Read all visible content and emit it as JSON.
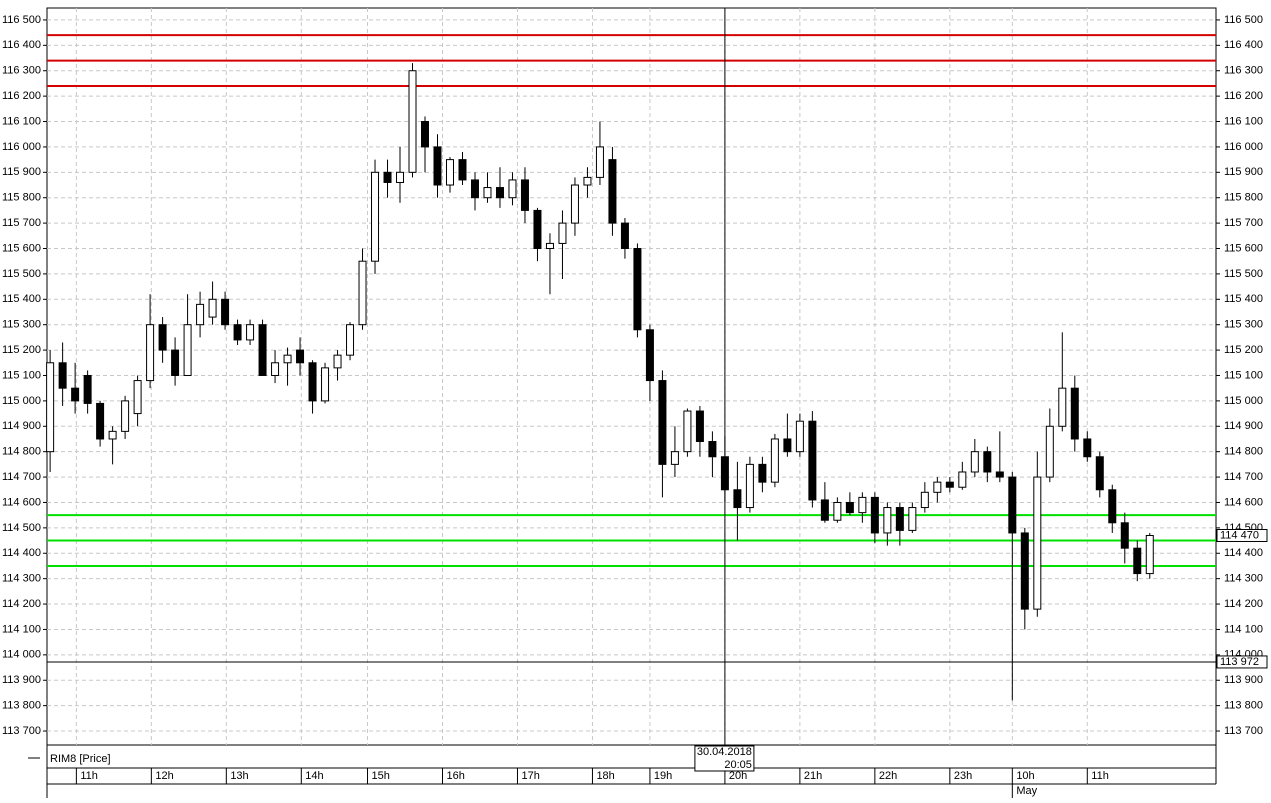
{
  "chart_data": {
    "type": "candlestick",
    "legend": "RIM8 [Price]",
    "ylim": [
      113645,
      116547
    ],
    "xlim": [
      -0.25,
      93.3
    ],
    "grid": true,
    "yticks": [
      {
        "value": 113700,
        "label": "113 700"
      },
      {
        "value": 113800,
        "label": "113 800"
      },
      {
        "value": 113900,
        "label": "113 900"
      },
      {
        "value": 114000,
        "label": "114 000"
      },
      {
        "value": 114100,
        "label": "114 100"
      },
      {
        "value": 114200,
        "label": "114 200"
      },
      {
        "value": 114300,
        "label": "114 300"
      },
      {
        "value": 114400,
        "label": "114 400"
      },
      {
        "value": 114500,
        "label": "114 500"
      },
      {
        "value": 114600,
        "label": "114 600"
      },
      {
        "value": 114700,
        "label": "114 700"
      },
      {
        "value": 114800,
        "label": "114 800"
      },
      {
        "value": 114900,
        "label": "114 900"
      },
      {
        "value": 115000,
        "label": "115 000"
      },
      {
        "value": 115100,
        "label": "115 100"
      },
      {
        "value": 115200,
        "label": "115 200"
      },
      {
        "value": 115300,
        "label": "115 300"
      },
      {
        "value": 115400,
        "label": "115 400"
      },
      {
        "value": 115500,
        "label": "115 500"
      },
      {
        "value": 115600,
        "label": "115 600"
      },
      {
        "value": 115700,
        "label": "115 700"
      },
      {
        "value": 115800,
        "label": "115 800"
      },
      {
        "value": 115900,
        "label": "115 900"
      },
      {
        "value": 116000,
        "label": "116 000"
      },
      {
        "value": 116100,
        "label": "116 100"
      },
      {
        "value": 116200,
        "label": "116 200"
      },
      {
        "value": 116300,
        "label": "116 300"
      },
      {
        "value": 116400,
        "label": "116 400"
      },
      {
        "value": 116500,
        "label": "116 500"
      }
    ],
    "xticks": [
      {
        "value": 2.1,
        "label": "11h"
      },
      {
        "value": 8.1,
        "label": "12h"
      },
      {
        "value": 14.1,
        "label": "13h"
      },
      {
        "value": 20.1,
        "label": "14h"
      },
      {
        "value": 25.4,
        "label": "15h"
      },
      {
        "value": 31.4,
        "label": "16h"
      },
      {
        "value": 37.4,
        "label": "17h"
      },
      {
        "value": 43.4,
        "label": "18h"
      },
      {
        "value": 48,
        "label": "19h"
      },
      {
        "value": 54,
        "label": "20h"
      },
      {
        "value": 60,
        "label": "21h"
      },
      {
        "value": 66,
        "label": "22h"
      },
      {
        "value": 72,
        "label": "23h"
      },
      {
        "value": 77,
        "label": "10h"
      },
      {
        "value": 83,
        "label": "11h"
      }
    ],
    "month_label": {
      "value": 77,
      "label": "May"
    },
    "crosshair": {
      "value": 54,
      "date": "30.04.2018",
      "time": "20:05"
    },
    "red_lines": {
      "color": "#d40000",
      "values": [
        116440,
        116340,
        116240
      ]
    },
    "green_lines": {
      "color": "#00e000",
      "values": [
        114550,
        114450,
        114350
      ]
    },
    "price_line": {
      "value": 113972,
      "label": "113 972"
    },
    "last_price": {
      "value": 114470,
      "label": "114 470"
    },
    "open": [
      114800,
      115150,
      115050,
      115100,
      114990,
      114850,
      114880,
      114950,
      115080,
      115300,
      115200,
      115100,
      115300,
      115330,
      115400,
      115300,
      115240,
      115300,
      115100,
      115150,
      115200,
      115150,
      115000,
      115130,
      115180,
      115300,
      115550,
      115900,
      115860,
      115900,
      116100,
      116000,
      115850,
      115950,
      115870,
      115800,
      115840,
      115800,
      115870,
      115750,
      115600,
      115620,
      115700,
      115850,
      115880,
      115950,
      115700,
      115600,
      115280,
      115080,
      114750,
      114800,
      114960,
      114840,
      114780,
      114650,
      114580,
      114750,
      114680,
      114850,
      114800,
      114920,
      114610,
      114530,
      114600,
      114560,
      114620,
      114480,
      114580,
      114490,
      114580,
      114640,
      114680,
      114660,
      114720,
      114800,
      114720,
      114700,
      114480,
      114180,
      114700,
      114900,
      115050,
      114850,
      114780,
      114650,
      114520,
      114420,
      114320
    ],
    "high": [
      115200,
      115230,
      115150,
      115120,
      115000,
      114900,
      115020,
      115100,
      115420,
      115330,
      115250,
      115420,
      115430,
      115470,
      115430,
      115320,
      115320,
      115320,
      115200,
      115210,
      115250,
      115160,
      115150,
      115200,
      115310,
      115600,
      115950,
      115950,
      116000,
      116330,
      116120,
      116050,
      115960,
      115980,
      115900,
      115900,
      115920,
      115900,
      115920,
      115760,
      115660,
      115750,
      115880,
      115920,
      116100,
      116000,
      115720,
      115620,
      115300,
      115120,
      114900,
      114970,
      114980,
      114880,
      114860,
      114760,
      114780,
      114780,
      114870,
      114950,
      114950,
      114960,
      114680,
      114620,
      114640,
      114640,
      114640,
      114600,
      114600,
      114600,
      114680,
      114700,
      114700,
      114760,
      114850,
      114820,
      114880,
      114720,
      114500,
      114800,
      114970,
      115270,
      115100,
      114880,
      114800,
      114670,
      114560,
      114450,
      114480
    ],
    "low": [
      114720,
      114980,
      114950,
      114950,
      114820,
      114750,
      114850,
      114900,
      115050,
      115150,
      115060,
      115100,
      115250,
      115300,
      115280,
      115220,
      115220,
      115100,
      115070,
      115060,
      115100,
      114950,
      114990,
      115080,
      115160,
      115280,
      115500,
      115800,
      115780,
      115880,
      115900,
      115800,
      115820,
      115850,
      115750,
      115780,
      115760,
      115770,
      115700,
      115550,
      115420,
      115480,
      115650,
      115800,
      115850,
      115650,
      115560,
      115250,
      115000,
      114620,
      114700,
      114780,
      114780,
      114700,
      114600,
      114450,
      114560,
      114640,
      114660,
      114780,
      114780,
      114580,
      114520,
      114520,
      114550,
      114520,
      114440,
      114430,
      114430,
      114480,
      114560,
      114600,
      114640,
      114650,
      114700,
      114680,
      114680,
      113820,
      114100,
      114150,
      114680,
      114880,
      114800,
      114760,
      114620,
      114480,
      114360,
      114290,
      114300
    ],
    "close": [
      115150,
      115050,
      115000,
      114990,
      114850,
      114880,
      115000,
      115080,
      115300,
      115200,
      115100,
      115300,
      115380,
      115400,
      115300,
      115240,
      115300,
      115100,
      115150,
      115180,
      115150,
      115000,
      115130,
      115180,
      115300,
      115550,
      115900,
      115860,
      115900,
      116300,
      116000,
      115850,
      115950,
      115870,
      115800,
      115840,
      115800,
      115870,
      115750,
      115600,
      115620,
      115700,
      115850,
      115880,
      116000,
      115700,
      115600,
      115280,
      115080,
      114750,
      114800,
      114960,
      114840,
      114780,
      114650,
      114580,
      114750,
      114680,
      114850,
      114800,
      114920,
      114610,
      114530,
      114600,
      114560,
      114620,
      114480,
      114580,
      114490,
      114580,
      114640,
      114680,
      114660,
      114720,
      114800,
      114720,
      114700,
      114480,
      114180,
      114700,
      114900,
      115050,
      114850,
      114780,
      114650,
      114520,
      114420,
      114320,
      114470
    ]
  }
}
